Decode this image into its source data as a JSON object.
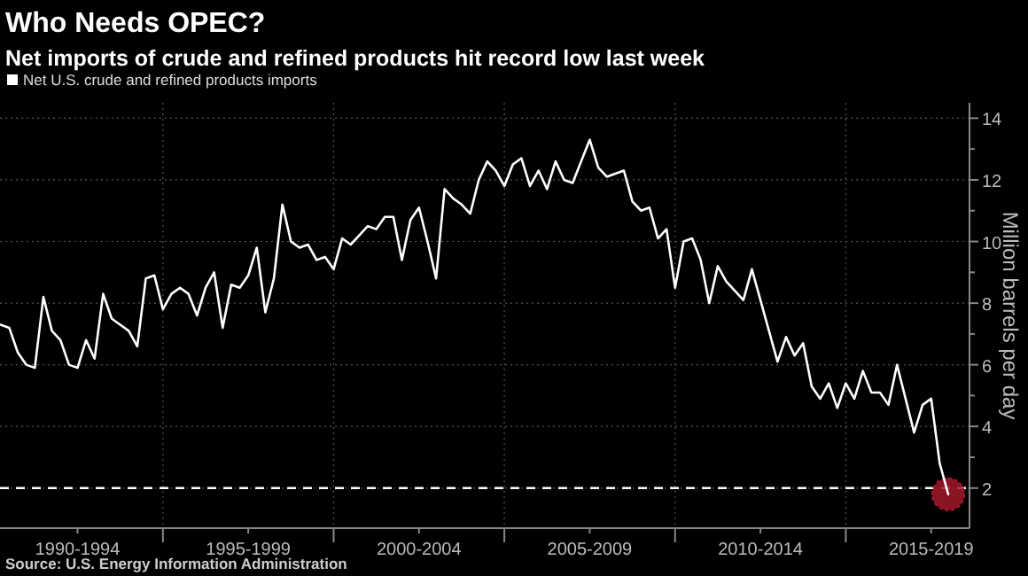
{
  "chart_data": {
    "type": "line",
    "title": "Who Needs OPEC?",
    "subtitle": "Net imports of crude and refined products hit record low last week",
    "ylabel": "Million barrels per day",
    "annotations": [
      "Source: U.S. Energy Information Administration"
    ],
    "legend": "top left",
    "grid": true,
    "line_style": "solid",
    "marker": "none",
    "categories": [
      null,
      null,
      null,
      null,
      null,
      null,
      null,
      null,
      null,
      "1990-1994",
      null,
      null,
      null,
      null,
      null,
      null,
      null,
      null,
      null,
      null,
      null,
      null,
      null,
      null,
      null,
      null,
      null,
      null,
      null,
      "1995-1999",
      null,
      null,
      null,
      null,
      null,
      null,
      null,
      null,
      null,
      null,
      null,
      null,
      null,
      null,
      null,
      null,
      null,
      null,
      null,
      "2000-2004",
      null,
      null,
      null,
      null,
      null,
      null,
      null,
      null,
      null,
      null,
      null,
      null,
      null,
      null,
      null,
      null,
      null,
      null,
      null,
      "2005-2009",
      null,
      null,
      null,
      null,
      null,
      null,
      null,
      null,
      null,
      null,
      null,
      null,
      null,
      null,
      null,
      null,
      null,
      null,
      null,
      "2010-2014",
      null,
      null,
      null,
      null,
      null,
      null,
      null,
      null,
      null,
      null,
      null,
      null,
      null,
      null,
      null,
      null,
      null,
      null,
      null,
      "2015-2019",
      null,
      null
    ],
    "ylim": [
      0.7,
      14.5
    ],
    "yticks": [
      2,
      {
        "value": 3,
        "label": null
      },
      4,
      {
        "value": 5,
        "label": null
      },
      6,
      {
        "value": 7,
        "label": null
      },
      8,
      {
        "value": 9,
        "label": null
      },
      10,
      {
        "value": 11,
        "label": null
      },
      12,
      {
        "value": 13,
        "label": null
      },
      14
    ],
    "ref_lines": [
      {
        "axis": "y",
        "value": 2,
        "color": "#ffffff",
        "line_style": "dashed"
      }
    ],
    "series": [
      {
        "name": "Net U.S. crude and refined products imports",
        "color": "#ffffff",
        "values": [
          7.3,
          7.2,
          6.4,
          6.0,
          5.9,
          8.2,
          7.1,
          6.8,
          6.0,
          5.9,
          6.8,
          6.2,
          8.3,
          7.5,
          7.3,
          7.1,
          6.6,
          8.8,
          8.9,
          7.8,
          8.3,
          8.5,
          8.3,
          7.6,
          8.5,
          9.0,
          7.2,
          8.6,
          8.5,
          8.9,
          9.8,
          7.7,
          8.8,
          11.2,
          10.0,
          9.8,
          9.9,
          9.4,
          9.5,
          9.1,
          10.1,
          9.9,
          10.2,
          10.5,
          10.4,
          10.8,
          10.8,
          9.4,
          10.7,
          11.1,
          10.0,
          8.8,
          11.7,
          11.4,
          11.2,
          10.9,
          12.0,
          12.6,
          12.3,
          11.8,
          12.5,
          12.7,
          11.8,
          12.3,
          11.7,
          12.6,
          12.0,
          11.9,
          12.6,
          13.3,
          12.4,
          12.1,
          12.2,
          12.3,
          11.3,
          11.0,
          11.1,
          10.1,
          10.4,
          8.5,
          10.0,
          10.1,
          9.4,
          8.0,
          9.2,
          8.7,
          8.4,
          8.1,
          9.1,
          8.1,
          7.1,
          6.1,
          6.9,
          6.3,
          6.7,
          5.3,
          4.9,
          5.4,
          4.6,
          5.4,
          4.9,
          5.8,
          5.1,
          5.1,
          4.7,
          6.0,
          4.9,
          3.8,
          4.7,
          4.9,
          2.8,
          1.8
        ]
      },
      {
        "type": "scatter",
        "marker": "circle",
        "color": "#a0182a",
        "values": [
          null,
          null,
          null,
          null,
          null,
          null,
          null,
          null,
          null,
          null,
          null,
          null,
          null,
          null,
          null,
          null,
          null,
          null,
          null,
          null,
          null,
          null,
          null,
          null,
          null,
          null,
          null,
          null,
          null,
          null,
          null,
          null,
          null,
          null,
          null,
          null,
          null,
          null,
          null,
          null,
          null,
          null,
          null,
          null,
          null,
          null,
          null,
          null,
          null,
          null,
          null,
          null,
          null,
          null,
          null,
          null,
          null,
          null,
          null,
          null,
          null,
          null,
          null,
          null,
          null,
          null,
          null,
          null,
          null,
          null,
          null,
          null,
          null,
          null,
          null,
          null,
          null,
          null,
          null,
          null,
          null,
          null,
          null,
          null,
          null,
          null,
          null,
          null,
          null,
          null,
          null,
          null,
          null,
          null,
          null,
          null,
          null,
          null,
          null,
          null,
          null,
          null,
          null,
          null,
          null,
          null,
          null,
          null,
          null,
          null,
          null,
          1.8
        ]
      }
    ]
  }
}
